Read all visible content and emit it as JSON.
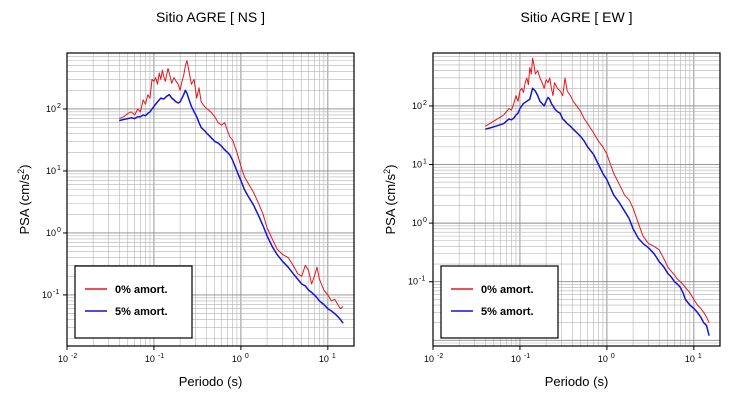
{
  "chart_data": [
    {
      "type": "line",
      "title": "Sitio AGRE [ NS ]",
      "xlabel": "Periodo (s)",
      "ylabel": "PSA (cm/s",
      "ylabel_sup": "2",
      "ylabel_end": ")",
      "x_scale": "log",
      "y_scale": "log",
      "xlim": [
        0.01,
        20
      ],
      "ylim": [
        0.015,
        800
      ],
      "grid": true,
      "legend_position": "bottom-left",
      "x_ticks": [
        {
          "base": "10",
          "exp": "-2"
        },
        {
          "base": "10",
          "exp": "-1"
        },
        {
          "base": "10",
          "exp": "0"
        },
        {
          "base": "10",
          "exp": "1"
        }
      ],
      "y_ticks": [
        {
          "base": "10",
          "exp": "-1"
        },
        {
          "base": "10",
          "exp": "0"
        },
        {
          "base": "10",
          "exp": "1"
        },
        {
          "base": "10",
          "exp": "2"
        }
      ],
      "series": [
        {
          "name": "0% amort.",
          "color": "#e8141c",
          "x": [
            0.04,
            0.045,
            0.05,
            0.055,
            0.06,
            0.065,
            0.07,
            0.075,
            0.08,
            0.085,
            0.09,
            0.095,
            0.1,
            0.105,
            0.11,
            0.115,
            0.12,
            0.125,
            0.13,
            0.135,
            0.14,
            0.145,
            0.15,
            0.16,
            0.17,
            0.18,
            0.19,
            0.2,
            0.21,
            0.22,
            0.23,
            0.24,
            0.25,
            0.27,
            0.29,
            0.31,
            0.33,
            0.35,
            0.38,
            0.41,
            0.45,
            0.5,
            0.55,
            0.6,
            0.65,
            0.7,
            0.75,
            0.8,
            0.9,
            1.0,
            1.1,
            1.2,
            1.4,
            1.6,
            1.8,
            2.0,
            2.3,
            2.6,
            3.0,
            3.5,
            4.0,
            4.5,
            5.0,
            5.5,
            6.0,
            6.5,
            7.0,
            7.5,
            8.0,
            9.0,
            10.0,
            11.0,
            12.0,
            13.0,
            14.0,
            15.0
          ],
          "values": [
            70,
            75,
            85,
            90,
            80,
            100,
            90,
            140,
            120,
            170,
            150,
            300,
            280,
            320,
            250,
            380,
            300,
            420,
            330,
            280,
            350,
            450,
            380,
            260,
            320,
            280,
            250,
            200,
            280,
            350,
            500,
            600,
            450,
            250,
            300,
            150,
            220,
            130,
            110,
            100,
            90,
            75,
            60,
            55,
            60,
            45,
            35,
            32,
            20,
            12,
            8,
            6.5,
            4.5,
            3.0,
            2.0,
            1.2,
            0.8,
            0.55,
            0.45,
            0.4,
            0.3,
            0.22,
            0.2,
            0.3,
            0.25,
            0.15,
            0.2,
            0.28,
            0.18,
            0.12,
            0.1,
            0.08,
            0.085,
            0.07,
            0.06,
            0.065
          ]
        },
        {
          "name": "5% amort.",
          "color": "#1414d8",
          "x": [
            0.04,
            0.045,
            0.05,
            0.055,
            0.06,
            0.065,
            0.07,
            0.075,
            0.08,
            0.085,
            0.09,
            0.095,
            0.1,
            0.11,
            0.12,
            0.13,
            0.14,
            0.15,
            0.16,
            0.17,
            0.18,
            0.19,
            0.2,
            0.21,
            0.22,
            0.23,
            0.24,
            0.25,
            0.27,
            0.29,
            0.31,
            0.33,
            0.35,
            0.38,
            0.41,
            0.45,
            0.5,
            0.55,
            0.6,
            0.65,
            0.7,
            0.75,
            0.8,
            0.9,
            1.0,
            1.1,
            1.2,
            1.4,
            1.6,
            1.8,
            2.0,
            2.3,
            2.6,
            3.0,
            3.5,
            4.0,
            4.5,
            5.0,
            5.5,
            6.0,
            6.5,
            7.0,
            7.5,
            8.0,
            9.0,
            10.0,
            11.0,
            12.0,
            13.0,
            14.0,
            15.0
          ],
          "values": [
            65,
            68,
            70,
            72,
            70,
            75,
            75,
            80,
            78,
            85,
            90,
            100,
            110,
            130,
            150,
            145,
            160,
            170,
            150,
            140,
            130,
            125,
            130,
            150,
            170,
            200,
            180,
            150,
            110,
            90,
            75,
            60,
            50,
            45,
            40,
            35,
            30,
            28,
            25,
            22,
            20,
            18,
            15,
            10,
            7,
            5,
            4,
            2.8,
            1.9,
            1.3,
            0.9,
            0.6,
            0.45,
            0.35,
            0.28,
            0.22,
            0.18,
            0.15,
            0.14,
            0.12,
            0.11,
            0.1,
            0.09,
            0.08,
            0.07,
            0.06,
            0.055,
            0.05,
            0.045,
            0.04,
            0.035
          ]
        }
      ]
    },
    {
      "type": "line",
      "title": "Sitio AGRE [ EW ]",
      "xlabel": "Periodo (s)",
      "ylabel": "PSA (cm/s",
      "ylabel_sup": "2",
      "ylabel_end": ")",
      "x_scale": "log",
      "y_scale": "log",
      "xlim": [
        0.01,
        20
      ],
      "ylim": [
        0.008,
        800
      ],
      "grid": true,
      "legend_position": "bottom-left",
      "x_ticks": [
        {
          "base": "10",
          "exp": "-2"
        },
        {
          "base": "10",
          "exp": "-1"
        },
        {
          "base": "10",
          "exp": "0"
        },
        {
          "base": "10",
          "exp": "1"
        }
      ],
      "y_ticks": [
        {
          "base": "10",
          "exp": "-1"
        },
        {
          "base": "10",
          "exp": "0"
        },
        {
          "base": "10",
          "exp": "1"
        },
        {
          "base": "10",
          "exp": "2"
        }
      ],
      "series": [
        {
          "name": "0% amort.",
          "color": "#e8141c",
          "x": [
            0.04,
            0.045,
            0.05,
            0.055,
            0.06,
            0.065,
            0.07,
            0.075,
            0.08,
            0.085,
            0.09,
            0.095,
            0.1,
            0.105,
            0.11,
            0.115,
            0.12,
            0.125,
            0.13,
            0.135,
            0.14,
            0.145,
            0.15,
            0.16,
            0.17,
            0.18,
            0.19,
            0.2,
            0.21,
            0.22,
            0.23,
            0.24,
            0.25,
            0.27,
            0.29,
            0.31,
            0.33,
            0.35,
            0.38,
            0.41,
            0.45,
            0.5,
            0.55,
            0.6,
            0.7,
            0.8,
            0.9,
            1.0,
            1.1,
            1.2,
            1.4,
            1.6,
            1.8,
            2.0,
            2.3,
            2.6,
            3.0,
            3.5,
            4.0,
            4.5,
            5.0,
            5.5,
            6.0,
            6.5,
            7.0,
            7.5,
            8.0,
            9.0,
            10.0,
            11.0,
            12.0,
            13.0,
            14.0,
            15.0
          ],
          "values": [
            45,
            50,
            55,
            60,
            65,
            70,
            80,
            90,
            85,
            110,
            150,
            120,
            180,
            200,
            170,
            250,
            300,
            230,
            450,
            350,
            650,
            500,
            350,
            400,
            300,
            250,
            200,
            280,
            250,
            300,
            200,
            150,
            250,
            200,
            180,
            150,
            300,
            180,
            150,
            120,
            100,
            80,
            60,
            50,
            35,
            25,
            20,
            15,
            10,
            7,
            4.5,
            3.0,
            2.5,
            1.8,
            1.0,
            0.6,
            0.45,
            0.4,
            0.35,
            0.25,
            0.18,
            0.15,
            0.13,
            0.11,
            0.1,
            0.09,
            0.08,
            0.065,
            0.05,
            0.04,
            0.035,
            0.03,
            0.025,
            0.02
          ]
        },
        {
          "name": "5% amort.",
          "color": "#1414d8",
          "x": [
            0.04,
            0.045,
            0.05,
            0.055,
            0.06,
            0.065,
            0.07,
            0.075,
            0.08,
            0.085,
            0.09,
            0.095,
            0.1,
            0.11,
            0.12,
            0.13,
            0.14,
            0.15,
            0.16,
            0.17,
            0.18,
            0.19,
            0.2,
            0.21,
            0.22,
            0.23,
            0.24,
            0.25,
            0.27,
            0.29,
            0.31,
            0.33,
            0.35,
            0.38,
            0.41,
            0.45,
            0.5,
            0.55,
            0.6,
            0.7,
            0.8,
            0.9,
            1.0,
            1.1,
            1.2,
            1.4,
            1.6,
            1.8,
            2.0,
            2.3,
            2.6,
            3.0,
            3.5,
            4.0,
            4.5,
            5.0,
            5.5,
            6.0,
            6.5,
            7.0,
            7.5,
            8.0,
            9.0,
            10.0,
            11.0,
            12.0,
            13.0,
            14.0,
            15.0
          ],
          "values": [
            40,
            42,
            44,
            46,
            48,
            50,
            55,
            60,
            58,
            62,
            70,
            75,
            90,
            110,
            120,
            130,
            200,
            180,
            150,
            120,
            110,
            100,
            120,
            140,
            130,
            110,
            100,
            90,
            80,
            75,
            60,
            55,
            50,
            45,
            40,
            35,
            30,
            25,
            20,
            15,
            10,
            7,
            5.5,
            4.0,
            3.0,
            2.2,
            1.6,
            1.2,
            0.8,
            0.55,
            0.45,
            0.38,
            0.3,
            0.22,
            0.18,
            0.14,
            0.12,
            0.1,
            0.09,
            0.08,
            0.065,
            0.05,
            0.04,
            0.035,
            0.03,
            0.025,
            0.02,
            0.018,
            0.012
          ]
        }
      ]
    }
  ]
}
